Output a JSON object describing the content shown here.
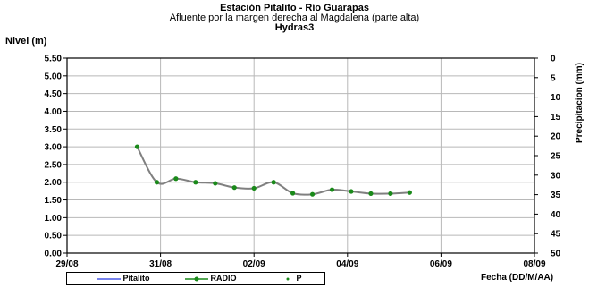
{
  "chart_data": {
    "type": "line",
    "title": "Estación Pitalito  - Río Guarapas",
    "subtitle": "Afluente por la margen derecha al Magdalena (parte alta)",
    "title3": "Hydras3",
    "ylabel": "Nivel (m)",
    "y2label": "Precipitacion (mm)",
    "xlabel": "Fecha (DD/M/AA)",
    "ylim": [
      0,
      5.5
    ],
    "y2lim": [
      0,
      50
    ],
    "y2_inverted": true,
    "yticks": [
      "0.00",
      "0.50",
      "1.00",
      "1.50",
      "2.00",
      "2.50",
      "3.00",
      "3.50",
      "4.00",
      "4.50",
      "5.00",
      "5.50"
    ],
    "y2ticks": [
      "0",
      "5",
      "10",
      "15",
      "20",
      "25",
      "30",
      "35",
      "40",
      "45",
      "50"
    ],
    "xlim_days": [
      29,
      39
    ],
    "xticks": [
      "29/08",
      "31/08",
      "02/09",
      "04/09",
      "06/09",
      "08/09"
    ],
    "grid": true,
    "legend_position": "bottom",
    "series": [
      {
        "name": "Pitalito",
        "color": "#4a5ae8",
        "x": [],
        "values": []
      },
      {
        "name": "RADIO",
        "color": "#808080",
        "marker_color": "#1a8a1a",
        "x": [
          30.5,
          30.92,
          31.33,
          31.75,
          32.17,
          32.58,
          33.0,
          33.42,
          33.83,
          34.25,
          34.67,
          35.08,
          35.5,
          35.92,
          36.33
        ],
        "values": [
          3.0,
          2.0,
          2.1,
          2.0,
          1.97,
          1.85,
          1.83,
          2.0,
          1.69,
          1.66,
          1.79,
          1.74,
          1.68,
          1.68,
          1.71
        ]
      },
      {
        "name": "P",
        "color": "#1a8a1a",
        "x": [],
        "values": []
      }
    ]
  }
}
